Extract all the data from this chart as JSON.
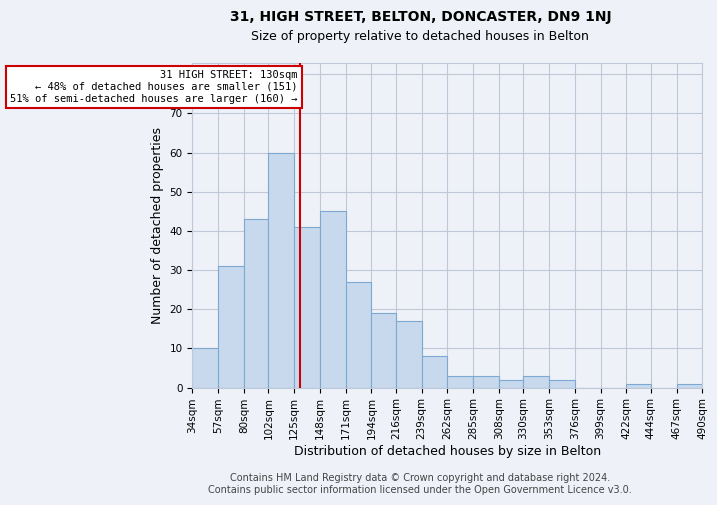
{
  "title": "31, HIGH STREET, BELTON, DONCASTER, DN9 1NJ",
  "subtitle": "Size of property relative to detached houses in Belton",
  "xlabel": "Distribution of detached houses by size in Belton",
  "ylabel": "Number of detached properties",
  "bin_edges": [
    34,
    57,
    80,
    102,
    125,
    148,
    171,
    194,
    216,
    239,
    262,
    285,
    308,
    330,
    353,
    376,
    399,
    422,
    444,
    467,
    490
  ],
  "bar_heights": [
    10,
    31,
    43,
    60,
    41,
    45,
    27,
    19,
    17,
    8,
    3,
    3,
    2,
    3,
    2,
    0,
    0,
    1,
    0,
    1
  ],
  "bar_color": "#c9d9ed",
  "bar_edge_color": "#7da8d0",
  "grid_color": "#c0c8d8",
  "background_color": "#eef2f8",
  "vline_x": 130,
  "vline_color": "#cc0000",
  "annotation_line1": "31 HIGH STREET: 130sqm",
  "annotation_line2": "← 48% of detached houses are smaller (151)",
  "annotation_line3": "51% of semi-detached houses are larger (160) →",
  "annotation_box_color": "white",
  "annotation_box_edge": "#cc0000",
  "ylim": [
    0,
    83
  ],
  "yticks": [
    0,
    10,
    20,
    30,
    40,
    50,
    60,
    70,
    80
  ],
  "tick_label_fontsize": 7.5,
  "axis_label_fontsize": 9,
  "title_fontsize": 10,
  "subtitle_fontsize": 9,
  "footer_text": "Contains HM Land Registry data © Crown copyright and database right 2024.\nContains public sector information licensed under the Open Government Licence v3.0.",
  "footer_fontsize": 7
}
